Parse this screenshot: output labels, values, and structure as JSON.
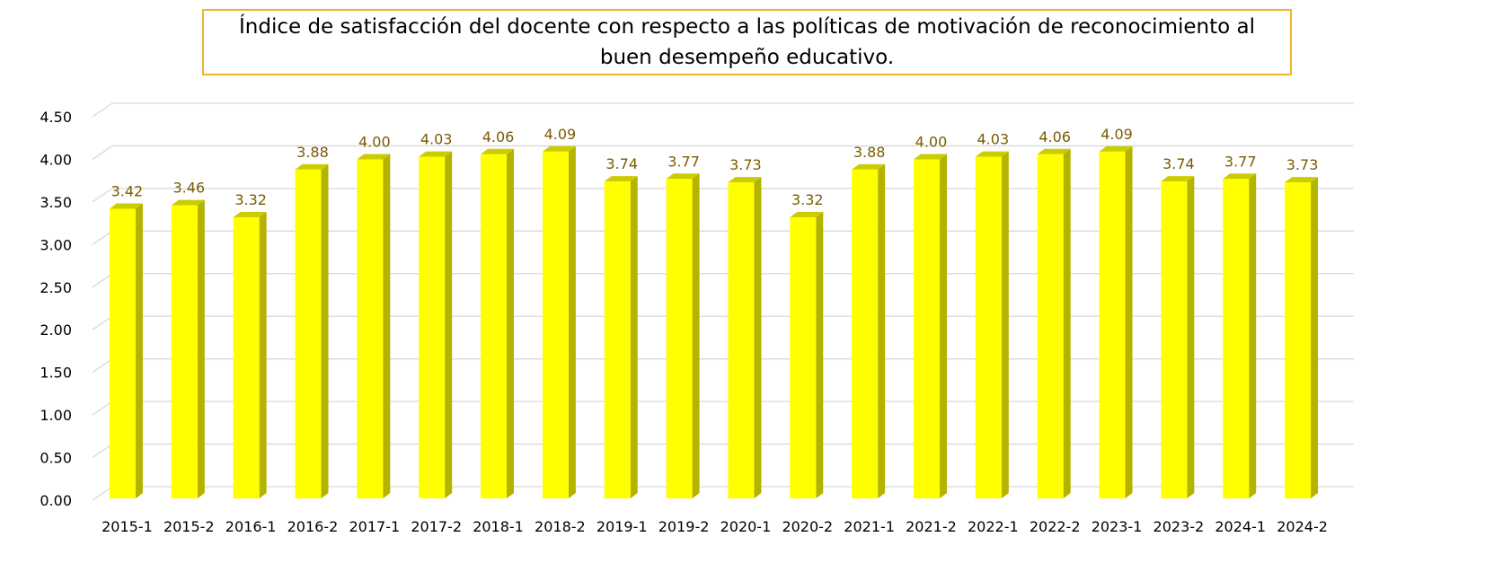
{
  "chart_data": {
    "type": "bar",
    "title": "Índice de satisfacción del docente con respecto a las políticas de motivación de reconocimiento al buen desempeño educativo.",
    "xlabel": "",
    "ylabel": "",
    "ylim": [
      0,
      4.5
    ],
    "yticks": [
      "0.00",
      "0.50",
      "1.00",
      "1.50",
      "2.00",
      "2.50",
      "3.00",
      "3.50",
      "4.00",
      "4.50"
    ],
    "grid": true,
    "legend": "none",
    "categories": [
      "2015-1",
      "2015-2",
      "2016-1",
      "2016-2",
      "2017-1",
      "2017-2",
      "2018-1",
      "2018-2",
      "2019-1",
      "2019-2",
      "2020-1",
      "2020-2",
      "2021-1",
      "2021-2",
      "2022-1",
      "2022-2",
      "2023-1",
      "2023-2",
      "2024-1",
      "2024-2"
    ],
    "values": [
      3.42,
      3.46,
      3.32,
      3.88,
      4.0,
      4.03,
      4.06,
      4.09,
      3.74,
      3.77,
      3.73,
      3.32,
      3.88,
      4.0,
      4.03,
      4.06,
      4.09,
      3.74,
      3.77,
      3.73
    ],
    "data_labels": [
      "3.42",
      "3.46",
      "3.32",
      "3.88",
      "4.00",
      "4.03",
      "4.06",
      "4.09",
      "3.74",
      "3.77",
      "3.73",
      "3.32",
      "3.88",
      "4.00",
      "4.03",
      "4.06",
      "4.09",
      "3.74",
      "3.77",
      "3.73"
    ],
    "colors": {
      "bar_front": "#ffff00",
      "bar_side": "#b3b300",
      "bar_top": "#cccc00",
      "data_label": "#7a5a00",
      "grid": "#d9d9d9",
      "title_border": "#f0b429"
    }
  }
}
